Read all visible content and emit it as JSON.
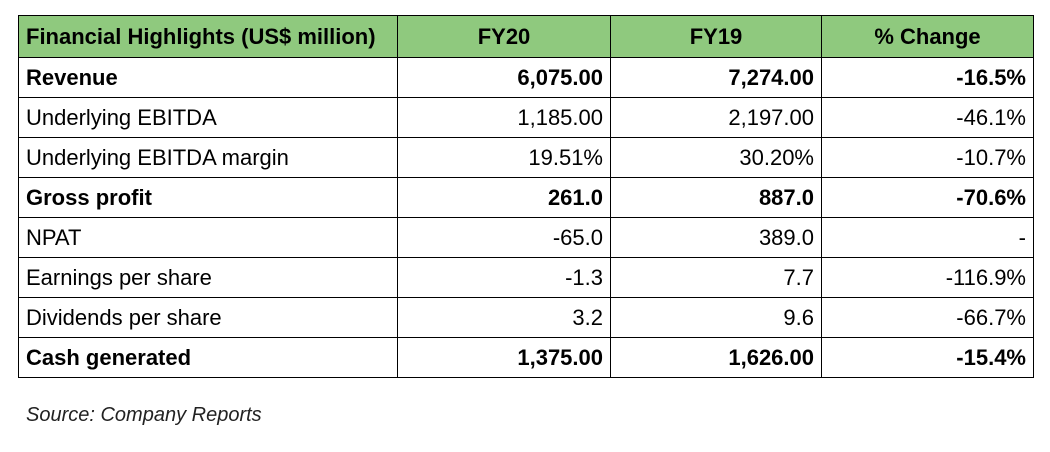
{
  "table": {
    "headers": [
      "Financial Highlights (US$ million)",
      "FY20",
      "FY19",
      "% Change"
    ],
    "rows": [
      {
        "label": "Revenue",
        "fy20": "6,075.00",
        "fy19": "7,274.00",
        "change": "-16.5%",
        "bold": true
      },
      {
        "label": "Underlying EBITDA",
        "fy20": "1,185.00",
        "fy19": "2,197.00",
        "change": "-46.1%",
        "bold": false
      },
      {
        "label": "Underlying EBITDA margin",
        "fy20": "19.51%",
        "fy19": "30.20%",
        "change": "-10.7%",
        "bold": false
      },
      {
        "label": "Gross profit",
        "fy20": "261.0",
        "fy19": "887.0",
        "change": "-70.6%",
        "bold": true
      },
      {
        "label": "NPAT",
        "fy20": "-65.0",
        "fy19": "389.0",
        "change": "-",
        "bold": false
      },
      {
        "label": "Earnings per share",
        "fy20": "-1.3",
        "fy19": "7.7",
        "change": "-116.9%",
        "bold": false
      },
      {
        "label": "Dividends per share",
        "fy20": "3.2",
        "fy19": "9.6",
        "change": "-66.7%",
        "bold": false
      },
      {
        "label": "Cash generated",
        "fy20": "1,375.00",
        "fy19": "1,626.00",
        "change": "-15.4%",
        "bold": true
      }
    ]
  },
  "source": "Source: Company Reports",
  "colors": {
    "header_background": "#8fc97e",
    "border": "#000000"
  }
}
